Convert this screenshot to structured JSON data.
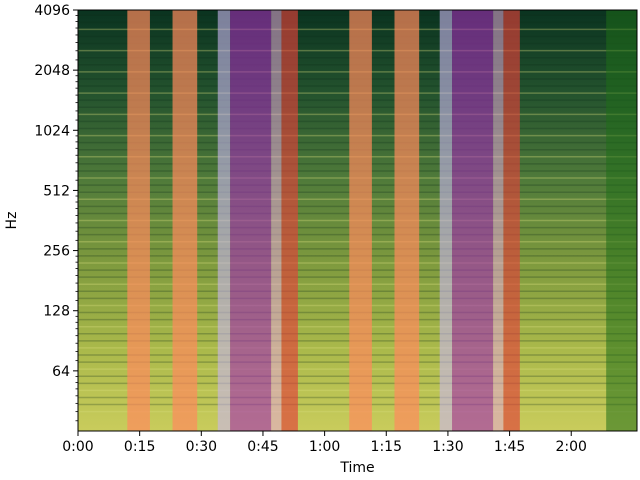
{
  "chart_data": {
    "type": "heatmap",
    "title": "",
    "xlabel": "Time",
    "ylabel": "Hz",
    "x_unit": "seconds",
    "xlim": [
      0,
      136
    ],
    "y_scale": "log2",
    "ylim": [
      32,
      4096
    ],
    "x_ticks": [
      {
        "value": 0,
        "label": "0:00"
      },
      {
        "value": 15,
        "label": "0:15"
      },
      {
        "value": 30,
        "label": "0:30"
      },
      {
        "value": 45,
        "label": "0:45"
      },
      {
        "value": 60,
        "label": "1:00"
      },
      {
        "value": 75,
        "label": "1:15"
      },
      {
        "value": 90,
        "label": "1:30"
      },
      {
        "value": 105,
        "label": "1:45"
      },
      {
        "value": 120,
        "label": "2:00"
      }
    ],
    "y_ticks": [
      {
        "value": 64,
        "label": "64"
      },
      {
        "value": 128,
        "label": "128"
      },
      {
        "value": 256,
        "label": "256"
      },
      {
        "value": 512,
        "label": "512"
      },
      {
        "value": 1024,
        "label": "1024"
      },
      {
        "value": 2048,
        "label": "2048"
      },
      {
        "value": 4096,
        "label": "4096"
      }
    ],
    "base_colormap": [
      "#0a3320",
      "#24532e",
      "#4f7a3a",
      "#7e9a3e",
      "#a9b84a",
      "#c9cc5c"
    ],
    "segments": [
      {
        "start": 0,
        "end": 12,
        "color": "#6c8f3c",
        "alpha": 0.0
      },
      {
        "start": 12,
        "end": 17.5,
        "color": "#ff8a5c",
        "alpha": 0.7
      },
      {
        "start": 17.5,
        "end": 23,
        "color": "#6c8f3c",
        "alpha": 0.0
      },
      {
        "start": 23,
        "end": 29,
        "color": "#ff8a5c",
        "alpha": 0.7
      },
      {
        "start": 29,
        "end": 34,
        "color": "#6c8f3c",
        "alpha": 0.0
      },
      {
        "start": 34,
        "end": 37,
        "color": "#c9b6f0",
        "alpha": 0.6
      },
      {
        "start": 37,
        "end": 47,
        "color": "#a32cb8",
        "alpha": 0.6
      },
      {
        "start": 47,
        "end": 49.5,
        "color": "#e7a7d8",
        "alpha": 0.55
      },
      {
        "start": 49.5,
        "end": 53.5,
        "color": "#e0403a",
        "alpha": 0.65
      },
      {
        "start": 53.5,
        "end": 66,
        "color": "#6c8f3c",
        "alpha": 0.0
      },
      {
        "start": 66,
        "end": 71.5,
        "color": "#ff8a5c",
        "alpha": 0.7
      },
      {
        "start": 71.5,
        "end": 77,
        "color": "#6c8f3c",
        "alpha": 0.0
      },
      {
        "start": 77,
        "end": 83,
        "color": "#ff8a5c",
        "alpha": 0.7
      },
      {
        "start": 83,
        "end": 88,
        "color": "#6c8f3c",
        "alpha": 0.0
      },
      {
        "start": 88,
        "end": 91,
        "color": "#c9b6f0",
        "alpha": 0.6
      },
      {
        "start": 91,
        "end": 101,
        "color": "#a32cb8",
        "alpha": 0.6
      },
      {
        "start": 101,
        "end": 103.5,
        "color": "#e7a7d8",
        "alpha": 0.55
      },
      {
        "start": 103.5,
        "end": 107.5,
        "color": "#e0403a",
        "alpha": 0.65
      },
      {
        "start": 107.5,
        "end": 128.5,
        "color": "#6c8f3c",
        "alpha": 0.0
      },
      {
        "start": 128.5,
        "end": 136,
        "color": "#1f6e18",
        "alpha": 0.55
      }
    ],
    "grid": false,
    "legend": "none"
  }
}
